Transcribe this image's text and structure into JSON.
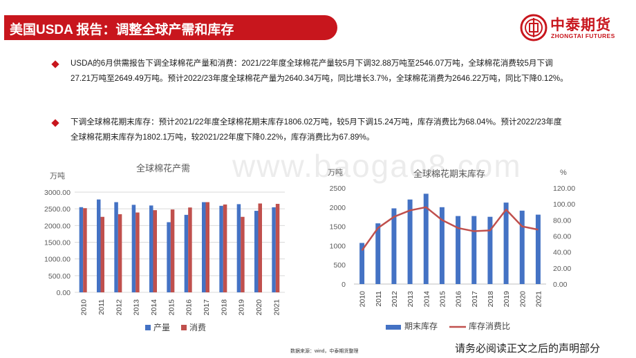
{
  "header": {
    "title": "美国USDA 报告：调整全球产需和库存",
    "logo_name": "中泰期货",
    "logo_sub": "ZHONGTAI FUTURES",
    "logo_icon": "coin-icon"
  },
  "body": {
    "paragraph1": "USDA的6月供需报告下调全球棉花产量和消费：2021/22年度全球棉花产量较5月下调32.88万吨至2546.07万吨，全球棉花消费较5月下调27.21万吨至2649.49万吨。预计2022/23年度全球棉花产量为2640.34万吨，同比增长3.7%，全球棉花消费为2646.22万吨，同比下降0.12%。",
    "paragraph2": "下调全球棉花期末库存：预计2021/22年度全球棉花期末库存1806.02万吨，较5月下调15.24万吨，库存消费比为68.04%。预计2022/23年度全球棉花期末库存为1802.1万吨，较2021/22年度下降0.22%，库存消费比为67.89%。"
  },
  "watermark": "www.baogao8.com",
  "footer": {
    "source": "数据来源：wind，中泰期货整理",
    "disclaimer": "请务必阅读正文之后的声明部分"
  },
  "colors": {
    "brand_red": "#c8161d",
    "series_blue": "#4472c4",
    "series_red": "#c0504d"
  },
  "chart_data": [
    {
      "type": "bar",
      "title": "全球棉花产需",
      "ylabel": "万吨",
      "xlabel": "",
      "ylim": [
        0,
        3000
      ],
      "yticks": [
        "0.00",
        "500.00",
        "1000.00",
        "1500.00",
        "2000.00",
        "2500.00",
        "3000.00"
      ],
      "grid": true,
      "legend": "bottom",
      "categories": [
        "2010",
        "2011",
        "2012",
        "2013",
        "2014",
        "2015",
        "2016",
        "2017",
        "2018",
        "2019",
        "2020",
        "2021"
      ],
      "series": [
        {
          "name": "产量",
          "values": [
            2550,
            2780,
            2700,
            2620,
            2600,
            2100,
            2320,
            2700,
            2590,
            2640,
            2440,
            2546
          ]
        },
        {
          "name": "消费",
          "values": [
            2520,
            2260,
            2340,
            2390,
            2460,
            2480,
            2540,
            2700,
            2630,
            2260,
            2660,
            2649
          ]
        }
      ]
    },
    {
      "type": "bar",
      "title": "全球棉花期末库存",
      "ylabel": "万吨",
      "y2label": "%",
      "xlabel": "",
      "ylim": [
        0,
        2500
      ],
      "yticks": [
        "0",
        "500",
        "1000",
        "1500",
        "2000",
        "2500"
      ],
      "y2lim": [
        0,
        120
      ],
      "y2ticks": [
        "0.00",
        "20.00",
        "40.00",
        "60.00",
        "80.00",
        "100.00",
        "120.00"
      ],
      "grid": false,
      "legend": "bottom",
      "categories": [
        "2010",
        "2011",
        "2012",
        "2013",
        "2014",
        "2015",
        "2016",
        "2017",
        "2018",
        "2019",
        "2020",
        "2021"
      ],
      "series": [
        {
          "name": "期末库存",
          "type": "bar",
          "axis": "left",
          "values": [
            1070,
            1580,
            1970,
            2200,
            2350,
            2000,
            1770,
            1770,
            1750,
            2120,
            1910,
            1806
          ]
        },
        {
          "name": "库存消费比",
          "type": "line",
          "axis": "right",
          "values": [
            42,
            70,
            84,
            92,
            96,
            80,
            70,
            66,
            67,
            93,
            72,
            68
          ]
        }
      ]
    }
  ]
}
